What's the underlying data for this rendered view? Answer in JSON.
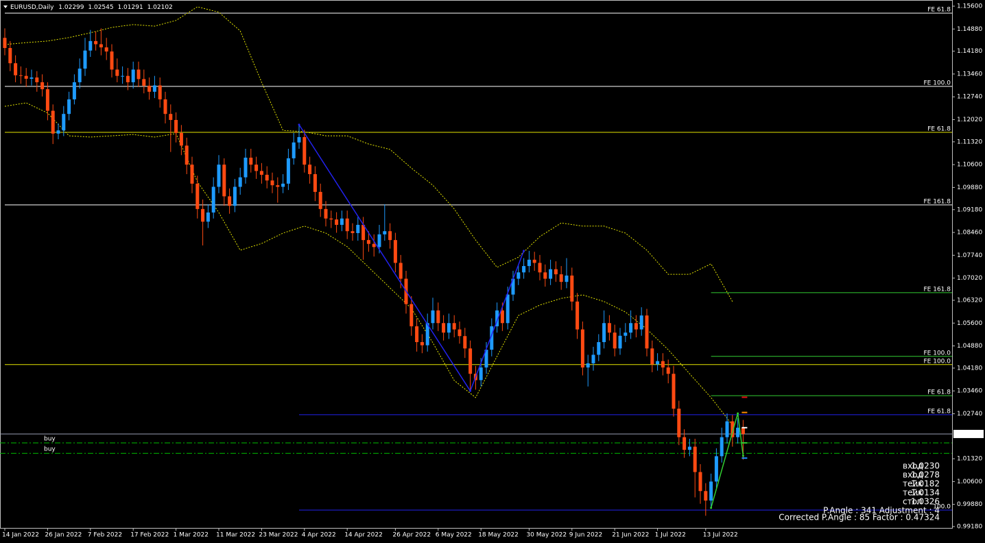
{
  "chart_data": {
    "type": "candlestick",
    "symbol": "EURUSD,Daily",
    "up_color": "#1e9bff",
    "down_color": "#ff4a12",
    "ylim": [
      0.99137,
      1.15795
    ],
    "yticks": [
      {
        "value": 1.156,
        "label": "1.15600"
      },
      {
        "value": 1.1488,
        "label": "1.14880"
      },
      {
        "value": 1.1418,
        "label": "1.14180"
      },
      {
        "value": 1.1346,
        "label": "1.13460"
      },
      {
        "value": 1.1274,
        "label": "1.12740"
      },
      {
        "value": 1.1202,
        "label": "1.12020"
      },
      {
        "value": 1.1132,
        "label": "1.11320"
      },
      {
        "value": 1.106,
        "label": "1.10600"
      },
      {
        "value": 1.0988,
        "label": "1.09880"
      },
      {
        "value": 1.0918,
        "label": "1.09180"
      },
      {
        "value": 1.0846,
        "label": "1.08460"
      },
      {
        "value": 1.0774,
        "label": "1.07740"
      },
      {
        "value": 1.0702,
        "label": "1.07020"
      },
      {
        "value": 1.0632,
        "label": "1.06320"
      },
      {
        "value": 1.056,
        "label": "1.05600"
      },
      {
        "value": 1.0488,
        "label": "1.04880"
      },
      {
        "value": 1.0418,
        "label": "1.04180"
      },
      {
        "value": 1.0346,
        "label": "1.03460"
      },
      {
        "value": 1.0274,
        "label": "1.02740"
      },
      {
        "value": 1.0132,
        "label": "1.01320"
      },
      {
        "value": 1.006,
        "label": "1.00600"
      },
      {
        "value": 0.9988,
        "label": "0.99880"
      },
      {
        "value": 0.9918,
        "label": "0.99180"
      }
    ],
    "categories": [
      "14 Jan 2022",
      null,
      null,
      null,
      null,
      null,
      null,
      null,
      "26 Jan 2022",
      null,
      null,
      null,
      null,
      null,
      null,
      null,
      "7 Feb 2022",
      null,
      null,
      null,
      null,
      null,
      null,
      null,
      "17 Feb 2022",
      null,
      null,
      null,
      null,
      null,
      null,
      null,
      "1 Mar 2022",
      null,
      null,
      null,
      null,
      null,
      null,
      null,
      "11 Mar 2022",
      null,
      null,
      null,
      null,
      null,
      null,
      null,
      "23 Mar 2022",
      null,
      null,
      null,
      null,
      null,
      null,
      null,
      "4 Apr 2022",
      null,
      null,
      null,
      null,
      null,
      null,
      null,
      "14 Apr 2022",
      null,
      null,
      null,
      null,
      null,
      null,
      null,
      null,
      "26 Apr 2022",
      null,
      null,
      null,
      null,
      null,
      null,
      null,
      "6 May 2022",
      null,
      null,
      null,
      null,
      null,
      null,
      null,
      "18 May 2022",
      null,
      null,
      null,
      null,
      null,
      null,
      null,
      null,
      "30 May 2022",
      null,
      null,
      null,
      null,
      null,
      null,
      null,
      "9 Jun 2022",
      null,
      null,
      null,
      null,
      null,
      null,
      null,
      "21 Jun 2022",
      null,
      null,
      null,
      null,
      null,
      null,
      null,
      "1 Jul 2022",
      null,
      null,
      null,
      null,
      null,
      null,
      null,
      null,
      "13 Jul 2022",
      null,
      null,
      null,
      null,
      null,
      null,
      null
    ],
    "open": [
      1.146,
      1.1428,
      1.138,
      1.1342,
      1.134,
      1.1331,
      1.1335,
      1.132,
      1.1298,
      1.123,
      1.1158,
      1.1168,
      1.122,
      1.1266,
      1.132,
      1.1363,
      1.142,
      1.145,
      1.144,
      1.143,
      1.1417,
      1.136,
      1.134,
      1.134,
      1.132,
      1.136,
      1.133,
      1.1309,
      1.129,
      1.131,
      1.1266,
      1.122,
      1.1201,
      1.116,
      1.112,
      1.106,
      1.1,
      1.092,
      1.088,
      1.0909,
      1.099,
      1.106,
      1.096,
      1.093,
      1.099,
      1.102,
      1.1082,
      1.106,
      1.104,
      1.1028,
      1.101,
      1.0995,
      1.099,
      1.1,
      1.108,
      1.113,
      1.1147,
      1.106,
      1.103,
      1.0974,
      1.092,
      1.089,
      1.0887,
      1.087,
      1.089,
      1.085,
      1.0844,
      1.087,
      1.0822,
      1.081,
      1.08,
      1.084,
      1.085,
      1.0822,
      1.075,
      1.07,
      1.062,
      1.055,
      1.05,
      1.049,
      1.056,
      1.06,
      1.056,
      1.053,
      1.056,
      1.054,
      1.0519,
      1.048,
      1.04,
      1.038,
      1.042,
      1.0476,
      1.055,
      1.06,
      1.056,
      1.065,
      1.07,
      1.072,
      1.074,
      1.076,
      1.075,
      1.072,
      1.07,
      1.073,
      1.0714,
      1.069,
      1.071,
      1.0628,
      1.054,
      1.042,
      1.0433,
      1.046,
      1.05,
      1.056,
      1.053,
      1.048,
      1.052,
      1.053,
      1.056,
      1.054,
      1.0584,
      1.048,
      1.043,
      1.044,
      1.042,
      1.04,
      1.029,
      1.02,
      1.016,
      1.017,
      1.009,
      1.003,
      1.0,
      1.006,
      1.014,
      1.02,
      1.025,
      1.02,
      1.02299
    ],
    "high": [
      1.149,
      1.145,
      1.1405,
      1.137,
      1.1365,
      1.136,
      1.1355,
      1.1345,
      1.132,
      1.125,
      1.119,
      1.1245,
      1.129,
      1.1345,
      1.1395,
      1.146,
      1.1485,
      1.148,
      1.149,
      1.146,
      1.144,
      1.1395,
      1.137,
      1.1365,
      1.1385,
      1.1385,
      1.136,
      1.1335,
      1.134,
      1.1335,
      1.129,
      1.125,
      1.1225,
      1.1185,
      1.1145,
      1.1085,
      1.1025,
      1.095,
      1.0935,
      1.102,
      1.109,
      1.108,
      1.0985,
      1.1015,
      1.105,
      1.111,
      1.111,
      1.1085,
      1.1065,
      1.1055,
      1.1035,
      1.102,
      1.103,
      1.111,
      1.116,
      1.1186,
      1.117,
      1.1085,
      1.1055,
      1.1,
      1.0945,
      1.0915,
      1.091,
      1.0915,
      1.0915,
      1.0875,
      1.0895,
      1.0895,
      1.085,
      1.084,
      1.087,
      1.0935,
      1.0875,
      1.0845,
      1.0775,
      1.0725,
      1.0645,
      1.0575,
      1.0525,
      1.059,
      1.064,
      1.0625,
      1.0585,
      1.059,
      1.0585,
      1.0565,
      1.0545,
      1.0505,
      1.0425,
      1.045,
      1.05,
      1.0575,
      1.0625,
      1.0625,
      1.0675,
      1.0725,
      1.0745,
      1.0765,
      1.0788,
      1.0785,
      1.0775,
      1.0745,
      1.076,
      1.0755,
      1.074,
      1.0765,
      1.0735,
      1.0655,
      1.0565,
      1.046,
      1.0485,
      1.0525,
      1.06,
      1.0585,
      1.0555,
      1.0545,
      1.056,
      1.06,
      1.0585,
      1.061,
      1.0605,
      1.0505,
      1.0465,
      1.0465,
      1.0445,
      1.0425,
      1.0315,
      1.0225,
      1.0195,
      1.0195,
      1.0115,
      1.0055,
      1.0085,
      1.0165,
      1.023,
      1.0275,
      1.027,
      1.026,
      1.02545
    ],
    "low": [
      1.1405,
      1.1355,
      1.132,
      1.1315,
      1.1305,
      1.131,
      1.129,
      1.1275,
      1.12,
      1.1125,
      1.114,
      1.115,
      1.12,
      1.125,
      1.13,
      1.134,
      1.14,
      1.142,
      1.1405,
      1.139,
      1.1335,
      1.132,
      1.1315,
      1.1295,
      1.13,
      1.1305,
      1.1285,
      1.1265,
      1.127,
      1.124,
      1.119,
      1.11,
      1.113,
      1.109,
      1.103,
      1.097,
      1.089,
      1.0805,
      1.086,
      1.089,
      1.097,
      1.093,
      1.0905,
      1.091,
      1.0965,
      1.1,
      1.1035,
      1.1015,
      1.1,
      1.0985,
      1.097,
      1.094,
      1.097,
      1.098,
      1.106,
      1.111,
      1.1035,
      1.1,
      1.0945,
      1.0895,
      1.0865,
      1.086,
      1.0845,
      1.085,
      1.0825,
      1.082,
      1.082,
      1.076,
      1.0785,
      1.077,
      1.078,
      1.082,
      1.0795,
      1.072,
      1.067,
      1.059,
      1.052,
      1.047,
      1.0465,
      1.047,
      1.054,
      1.0535,
      1.0505,
      1.051,
      1.0515,
      1.0495,
      1.045,
      1.035,
      1.035,
      1.036,
      1.04,
      1.0455,
      1.053,
      1.0535,
      1.054,
      1.063,
      1.068,
      1.07,
      1.072,
      1.0725,
      1.0695,
      1.0675,
      1.068,
      1.069,
      1.0665,
      1.067,
      1.06,
      1.051,
      1.0395,
      1.036,
      1.041,
      1.044,
      1.048,
      1.0505,
      1.0455,
      1.046,
      1.05,
      1.051,
      1.0515,
      1.052,
      1.0455,
      1.0405,
      1.041,
      1.0395,
      1.037,
      1.0265,
      1.0175,
      1.0135,
      1.014,
      1.001,
      0.999,
      0.9952,
      0.9975,
      1.004,
      1.012,
      1.018,
      1.017,
      1.018,
      1.01291
    ],
    "close": [
      1.1428,
      1.138,
      1.1342,
      1.134,
      1.1331,
      1.1335,
      1.132,
      1.1298,
      1.123,
      1.1158,
      1.1168,
      1.122,
      1.1266,
      1.132,
      1.1363,
      1.142,
      1.145,
      1.144,
      1.143,
      1.1417,
      1.136,
      1.134,
      1.134,
      1.132,
      1.136,
      1.133,
      1.1309,
      1.129,
      1.131,
      1.1266,
      1.122,
      1.1201,
      1.116,
      1.112,
      1.106,
      1.1,
      1.092,
      1.088,
      1.0909,
      1.099,
      1.106,
      1.096,
      1.093,
      1.099,
      1.102,
      1.1082,
      1.106,
      1.104,
      1.1028,
      1.101,
      1.0995,
      1.099,
      1.1,
      1.108,
      1.113,
      1.1147,
      1.106,
      1.103,
      1.0974,
      1.092,
      1.089,
      1.0887,
      1.087,
      1.089,
      1.085,
      1.0844,
      1.087,
      1.0822,
      1.081,
      1.08,
      1.084,
      1.085,
      1.0822,
      1.075,
      1.07,
      1.062,
      1.055,
      1.05,
      1.049,
      1.056,
      1.06,
      1.056,
      1.053,
      1.056,
      1.054,
      1.0519,
      1.048,
      1.04,
      1.038,
      1.042,
      1.0476,
      1.055,
      1.06,
      1.056,
      1.065,
      1.07,
      1.072,
      1.074,
      1.076,
      1.075,
      1.072,
      1.07,
      1.073,
      1.0714,
      1.069,
      1.071,
      1.0628,
      1.054,
      1.042,
      1.0433,
      1.046,
      1.05,
      1.056,
      1.053,
      1.048,
      1.052,
      1.053,
      1.056,
      1.054,
      1.0584,
      1.048,
      1.043,
      1.044,
      1.042,
      1.04,
      1.029,
      1.02,
      1.016,
      1.017,
      1.009,
      1.003,
      1.0,
      1.006,
      1.014,
      1.02,
      1.025,
      1.02,
      1.023,
      1.02102
    ],
    "band_color": "#e6e600",
    "band_x": [
      0,
      4,
      8,
      12,
      16,
      20,
      24,
      28,
      32,
      36,
      40,
      44,
      48,
      52,
      56,
      60,
      64,
      68,
      72,
      76,
      80,
      84,
      88,
      92,
      96,
      100,
      104,
      108,
      112,
      116,
      120,
      124,
      128,
      132,
      136
    ],
    "band_upper": [
      1.1439,
      1.1445,
      1.145,
      1.1461,
      1.1476,
      1.1493,
      1.1502,
      1.1497,
      1.1515,
      1.1558,
      1.1541,
      1.1482,
      1.132,
      1.1168,
      1.1164,
      1.1151,
      1.1151,
      1.1125,
      1.1108,
      1.1049,
      1.0995,
      1.092,
      1.0822,
      1.0736,
      1.0768,
      1.0833,
      1.0876,
      1.0866,
      1.0866,
      1.0844,
      1.079,
      1.0714,
      1.0714,
      1.0747,
      1.0628
    ],
    "band_lower": [
      1.1244,
      1.1255,
      1.1223,
      1.1151,
      1.1147,
      1.1151,
      1.1155,
      1.1147,
      1.1158,
      1.1006,
      1.0909,
      1.079,
      1.0811,
      1.0844,
      1.0866,
      1.0844,
      1.0801,
      1.0736,
      1.0671,
      1.0606,
      1.0498,
      1.0379,
      1.0325,
      1.0455,
      1.0584,
      1.0617,
      1.0638,
      1.0649,
      1.0628,
      1.0595,
      1.0541,
      1.0476,
      1.04,
      1.0325,
      1.0238
    ],
    "levels": [
      {
        "label": "FE 61.8",
        "value": 1.1538,
        "color": "#ffffff",
        "start": 0
      },
      {
        "label": "FE 100.0",
        "value": 1.1307,
        "color": "#ffffff",
        "start": 0
      },
      {
        "label": "FE 61.8",
        "value": 1.1162,
        "color": "#e6e600",
        "start": 0
      },
      {
        "label": "FE 161.8",
        "value": 1.0933,
        "color": "#ffffff",
        "start": 0
      },
      {
        "label": "FE 161.8",
        "value": 1.0656,
        "color": "#32cd32",
        "start": 132
      },
      {
        "label": "FE 100.0",
        "value": 1.0455,
        "color": "#32cd32",
        "start": 132
      },
      {
        "label": "FE 100.0",
        "value": 1.0429,
        "color": "#e6e600",
        "start": 0
      },
      {
        "label": "FE 61.8",
        "value": 1.0331,
        "color": "#32cd32",
        "start": 132
      },
      {
        "label": "FE 61.8",
        "value": 1.0271,
        "color": "#2222ee",
        "start": 55
      },
      {
        "label": "100.0",
        "value": 0.997,
        "color": "#2222ee",
        "start": 55
      }
    ],
    "orders": [
      {
        "label": "buy",
        "value": 1.0182
      },
      {
        "label": "buy",
        "value": 1.0149
      }
    ],
    "order_color": "#00c000",
    "zigzags": [
      {
        "color": "#2222ee",
        "x": [
          55,
          87,
          97
        ],
        "values": [
          1.1186,
          1.0346,
          1.0788
        ]
      },
      {
        "color": "#32cd32",
        "x": [
          132,
          137,
          138
        ],
        "values": [
          0.9977,
          1.0275,
          1.0141
        ]
      }
    ],
    "trade_panel": [
      {
        "text": "вход",
        "price": {
          "value": 1.023,
          "label": "1.0230"
        },
        "color": "#ffffff"
      },
      {
        "text": "вход",
        "price": {
          "value": 1.0278,
          "label": "1.0278"
        },
        "color": "#ff8c00"
      },
      {
        "text": "тейк",
        "price": {
          "value": 1.0182,
          "label": "1.0182"
        },
        "color": "#32cd32"
      },
      {
        "text": "тейк",
        "price": {
          "value": 1.0134,
          "label": "1.0134"
        },
        "color": "#1e90ff"
      },
      {
        "text": "стоп",
        "price": {
          "value": 1.0326,
          "label": "1.0326"
        },
        "color": "#ee1111"
      }
    ],
    "stats": [
      "P.Angle : 341   Adjustment : 4",
      "Corrected P.Angle : 85   Factor : 0.47324"
    ]
  }
}
